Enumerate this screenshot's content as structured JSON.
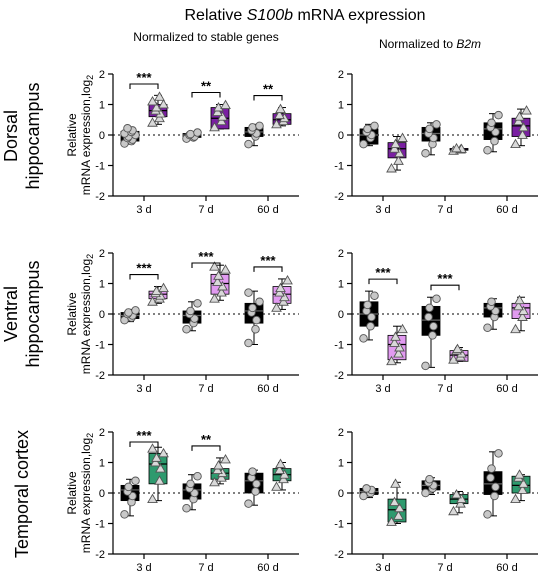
{
  "figure": {
    "title_prefix": "Relative ",
    "title_gene": "S100b",
    "title_suffix": " mRNA expression",
    "col_left_label": "Normalized to stable genes",
    "col_right_prefix": "Normalized to ",
    "col_right_gene": "B2m",
    "row_labels": [
      [
        "Dorsal",
        "hippocampus"
      ],
      [
        "Ventral",
        "hippocampus"
      ],
      [
        "Temporal cortex"
      ]
    ],
    "ylabel_line1": "Relative",
    "ylabel_line2": "mRNA expression,log",
    "ylabel_sub": "2",
    "colors": {
      "control": "#000000",
      "dorsal": "#7a1fa2",
      "ventral": "#e19af0",
      "temporal": "#2e9a6e",
      "marker_fill": "#c8c8c8",
      "marker_stroke": "#555555"
    }
  },
  "chart_data": [
    {
      "type": "box",
      "region": "Dorsal hippocampus",
      "normalization": "Normalized to stable genes",
      "categories": [
        "3 d",
        "7 d",
        "60 d"
      ],
      "ylim": [
        -2,
        2
      ],
      "yticks": [
        -2,
        -1,
        0,
        1,
        2
      ],
      "groups": [
        {
          "category": "3 d",
          "control": {
            "min": -0.3,
            "q1": -0.2,
            "median": 0.0,
            "q3": 0.12,
            "max": 0.22,
            "points": [
              -0.28,
              -0.2,
              -0.15,
              -0.1,
              -0.05,
              0.0,
              0.05,
              0.1,
              0.15,
              0.22
            ]
          },
          "treated": {
            "min": 0.35,
            "q1": 0.6,
            "median": 0.8,
            "q3": 1.0,
            "max": 1.3,
            "points": [
              0.4,
              0.55,
              0.7,
              0.8,
              0.9,
              1.0,
              1.1,
              1.25
            ]
          }
        },
        {
          "category": "7 d",
          "control": {
            "min": -0.12,
            "q1": -0.08,
            "median": 0.0,
            "q3": 0.05,
            "max": 0.1,
            "points": [
              -0.12,
              -0.08,
              -0.05,
              0.0,
              0.03,
              0.08
            ]
          },
          "treated": {
            "min": 0.2,
            "q1": 0.2,
            "median": 0.55,
            "q3": 0.9,
            "max": 1.0,
            "points": [
              0.25,
              0.45,
              0.6,
              0.75,
              0.9,
              0.98
            ]
          }
        },
        {
          "category": "60 d",
          "control": {
            "min": -0.35,
            "q1": -0.05,
            "median": 0.1,
            "q3": 0.25,
            "max": 0.35,
            "points": [
              -0.3,
              -0.05,
              0.05,
              0.15,
              0.25,
              0.3
            ]
          },
          "treated": {
            "min": 0.3,
            "q1": 0.35,
            "median": 0.5,
            "q3": 0.7,
            "max": 0.9,
            "points": [
              0.35,
              0.45,
              0.55,
              0.65,
              0.85
            ]
          }
        }
      ],
      "significance": [
        "***",
        "**",
        "**"
      ]
    },
    {
      "type": "box",
      "region": "Dorsal hippocampus",
      "normalization": "Normalized to B2m",
      "categories": [
        "3 d",
        "7 d",
        "60 d"
      ],
      "ylim": [
        -2,
        2
      ],
      "yticks": [
        -2,
        -1,
        0,
        1,
        2
      ],
      "groups": [
        {
          "category": "3 d",
          "control": {
            "min": -0.35,
            "q1": -0.3,
            "median": 0.0,
            "q3": 0.2,
            "max": 0.35,
            "points": [
              -0.3,
              -0.1,
              0.0,
              0.1,
              0.2,
              0.3
            ]
          },
          "treated": {
            "min": -1.15,
            "q1": -0.75,
            "median": -0.45,
            "q3": -0.25,
            "max": -0.05,
            "points": [
              -1.1,
              -0.85,
              -0.6,
              -0.45,
              -0.3,
              -0.1
            ]
          }
        },
        {
          "category": "7 d",
          "control": {
            "min": -0.65,
            "q1": -0.2,
            "median": 0.05,
            "q3": 0.25,
            "max": 0.4,
            "points": [
              -0.6,
              -0.3,
              -0.1,
              0.05,
              0.2,
              0.35
            ]
          },
          "treated": {
            "min": -0.55,
            "q1": -0.5,
            "median": -0.47,
            "q3": -0.44,
            "max": -0.42,
            "points": [
              -0.52,
              -0.48,
              -0.46,
              -0.44
            ]
          }
        },
        {
          "category": "60 d",
          "control": {
            "min": -0.55,
            "q1": -0.15,
            "median": 0.2,
            "q3": 0.4,
            "max": 0.7,
            "points": [
              -0.5,
              -0.2,
              0.1,
              0.25,
              0.4,
              0.65
            ]
          },
          "treated": {
            "min": -0.35,
            "q1": -0.05,
            "median": 0.3,
            "q3": 0.55,
            "max": 0.85,
            "points": [
              -0.3,
              0.0,
              0.25,
              0.45,
              0.6,
              0.8
            ]
          }
        }
      ],
      "significance": []
    },
    {
      "type": "box",
      "region": "Ventral hippocampus",
      "normalization": "Normalized to stable genes",
      "categories": [
        "3 d",
        "7 d",
        "60 d"
      ],
      "ylim": [
        -2,
        2
      ],
      "yticks": [
        -2,
        -1,
        0,
        1,
        2
      ],
      "groups": [
        {
          "category": "3 d",
          "control": {
            "min": -0.25,
            "q1": -0.15,
            "median": -0.05,
            "q3": 0.05,
            "max": 0.15,
            "points": [
              -0.2,
              -0.12,
              -0.05,
              0.0,
              0.05,
              0.12
            ]
          },
          "treated": {
            "min": 0.35,
            "q1": 0.5,
            "median": 0.65,
            "q3": 0.75,
            "max": 0.9,
            "points": [
              0.4,
              0.5,
              0.6,
              0.68,
              0.75,
              0.85
            ]
          }
        },
        {
          "category": "7 d",
          "control": {
            "min": -0.55,
            "q1": -0.3,
            "median": -0.05,
            "q3": 0.1,
            "max": 0.4,
            "points": [
              -0.5,
              -0.3,
              -0.15,
              0.0,
              0.1,
              0.35
            ]
          },
          "treated": {
            "min": 0.45,
            "q1": 0.65,
            "median": 1.0,
            "q3": 1.3,
            "max": 1.6,
            "points": [
              0.5,
              0.7,
              0.9,
              1.05,
              1.25,
              1.45,
              1.55
            ]
          }
        },
        {
          "category": "60 d",
          "control": {
            "min": -1.0,
            "q1": -0.3,
            "median": 0.1,
            "q3": 0.35,
            "max": 0.75,
            "points": [
              -0.95,
              -0.5,
              -0.2,
              0.05,
              0.2,
              0.4,
              0.7
            ]
          },
          "treated": {
            "min": 0.15,
            "q1": 0.35,
            "median": 0.65,
            "q3": 0.9,
            "max": 1.15,
            "points": [
              0.2,
              0.4,
              0.55,
              0.7,
              0.85,
              1.1
            ]
          }
        }
      ],
      "significance": [
        "***",
        "***",
        "***"
      ]
    },
    {
      "type": "box",
      "region": "Ventral hippocampus",
      "normalization": "Normalized to B2m",
      "categories": [
        "3 d",
        "7 d",
        "60 d"
      ],
      "ylim": [
        -2,
        2
      ],
      "yticks": [
        -2,
        -1,
        0,
        1,
        2
      ],
      "groups": [
        {
          "category": "3 d",
          "control": {
            "min": -0.85,
            "q1": -0.4,
            "median": 0.0,
            "q3": 0.4,
            "max": 0.75,
            "points": [
              -0.8,
              -0.4,
              -0.1,
              0.1,
              0.3,
              0.6
            ]
          },
          "treated": {
            "min": -1.6,
            "q1": -1.5,
            "median": -1.0,
            "q3": -0.7,
            "max": -0.4,
            "points": [
              -1.55,
              -1.3,
              -1.1,
              -0.95,
              -0.75,
              -0.5
            ]
          }
        },
        {
          "category": "7 d",
          "control": {
            "min": -1.75,
            "q1": -0.7,
            "median": -0.2,
            "q3": 0.25,
            "max": 0.55,
            "points": [
              -1.7,
              -0.7,
              -0.4,
              -0.1,
              0.2,
              0.5
            ]
          },
          "treated": {
            "min": -1.55,
            "q1": -1.55,
            "median": -1.35,
            "q3": -1.2,
            "max": -1.1,
            "points": [
              -1.5,
              -1.4,
              -1.3,
              -1.2,
              -1.15
            ]
          }
        },
        {
          "category": "60 d",
          "control": {
            "min": -0.5,
            "q1": -0.1,
            "median": 0.2,
            "q3": 0.35,
            "max": 0.5,
            "points": [
              -0.45,
              -0.1,
              0.1,
              0.25,
              0.4
            ]
          },
          "treated": {
            "min": -0.55,
            "q1": -0.15,
            "median": 0.2,
            "q3": 0.35,
            "max": 0.55,
            "points": [
              -0.5,
              -0.1,
              0.1,
              0.25,
              0.45
            ]
          }
        }
      ],
      "significance": [
        "***",
        "***"
      ]
    },
    {
      "type": "box",
      "region": "Temporal cortex",
      "normalization": "Normalized to stable genes",
      "categories": [
        "3 d",
        "7 d",
        "60 d"
      ],
      "ylim": [
        -2,
        2
      ],
      "yticks": [
        -2,
        -1,
        0,
        1,
        2
      ],
      "groups": [
        {
          "category": "3 d",
          "control": {
            "min": -0.75,
            "q1": -0.25,
            "median": 0.1,
            "q3": 0.25,
            "max": 0.45,
            "points": [
              -0.7,
              -0.3,
              -0.1,
              0.05,
              0.2,
              0.4
            ]
          },
          "treated": {
            "min": -0.25,
            "q1": 0.3,
            "median": 0.95,
            "q3": 1.3,
            "max": 1.5,
            "points": [
              -0.2,
              0.4,
              0.8,
              1.0,
              1.15,
              1.3,
              1.45
            ]
          }
        },
        {
          "category": "7 d",
          "control": {
            "min": -0.55,
            "q1": -0.2,
            "median": 0.1,
            "q3": 0.3,
            "max": 0.6,
            "points": [
              -0.5,
              -0.2,
              0.0,
              0.15,
              0.3,
              0.55
            ]
          },
          "treated": {
            "min": 0.3,
            "q1": 0.45,
            "median": 0.65,
            "q3": 0.8,
            "max": 1.15,
            "points": [
              0.35,
              0.5,
              0.65,
              0.75,
              0.9,
              1.1
            ]
          }
        },
        {
          "category": "60 d",
          "control": {
            "min": -0.4,
            "q1": 0.0,
            "median": 0.4,
            "q3": 0.65,
            "max": 0.75,
            "points": [
              -0.35,
              0.05,
              0.3,
              0.5,
              0.7
            ]
          },
          "treated": {
            "min": 0.1,
            "q1": 0.4,
            "median": 0.6,
            "q3": 0.8,
            "max": 1.0,
            "points": [
              0.2,
              0.45,
              0.6,
              0.75,
              0.95
            ]
          }
        }
      ],
      "significance": [
        "***",
        "**"
      ]
    },
    {
      "type": "box",
      "region": "Temporal cortex",
      "normalization": "Normalized to B2m",
      "categories": [
        "3 d",
        "7 d",
        "60 d"
      ],
      "ylim": [
        -2,
        2
      ],
      "yticks": [
        -2,
        -1,
        0,
        1,
        2
      ],
      "groups": [
        {
          "category": "3 d",
          "control": {
            "min": -0.15,
            "q1": -0.05,
            "median": 0.05,
            "q3": 0.15,
            "max": 0.2,
            "points": [
              -0.1,
              0.0,
              0.1,
              0.15
            ]
          },
          "treated": {
            "min": -1.0,
            "q1": -0.95,
            "median": -0.55,
            "q3": -0.2,
            "max": 0.35,
            "points": [
              -0.95,
              -0.75,
              -0.5,
              -0.3,
              0.3
            ]
          }
        },
        {
          "category": "7 d",
          "control": {
            "min": -0.05,
            "q1": 0.1,
            "median": 0.25,
            "q3": 0.4,
            "max": 0.5,
            "points": [
              0.0,
              0.15,
              0.25,
              0.35,
              0.45
            ]
          },
          "treated": {
            "min": -0.65,
            "q1": -0.35,
            "median": -0.2,
            "q3": -0.05,
            "max": 0.05,
            "points": [
              -0.6,
              -0.35,
              -0.2,
              -0.05
            ]
          }
        },
        {
          "category": "60 d",
          "control": {
            "min": -0.75,
            "q1": -0.05,
            "median": 0.3,
            "q3": 0.7,
            "max": 1.35,
            "points": [
              -0.7,
              -0.1,
              0.2,
              0.5,
              0.8,
              1.3
            ]
          },
          "treated": {
            "min": -0.25,
            "q1": 0.0,
            "median": 0.25,
            "q3": 0.55,
            "max": 0.6,
            "points": [
              -0.2,
              0.1,
              0.3,
              0.5,
              0.6
            ]
          }
        }
      ],
      "significance": []
    }
  ]
}
